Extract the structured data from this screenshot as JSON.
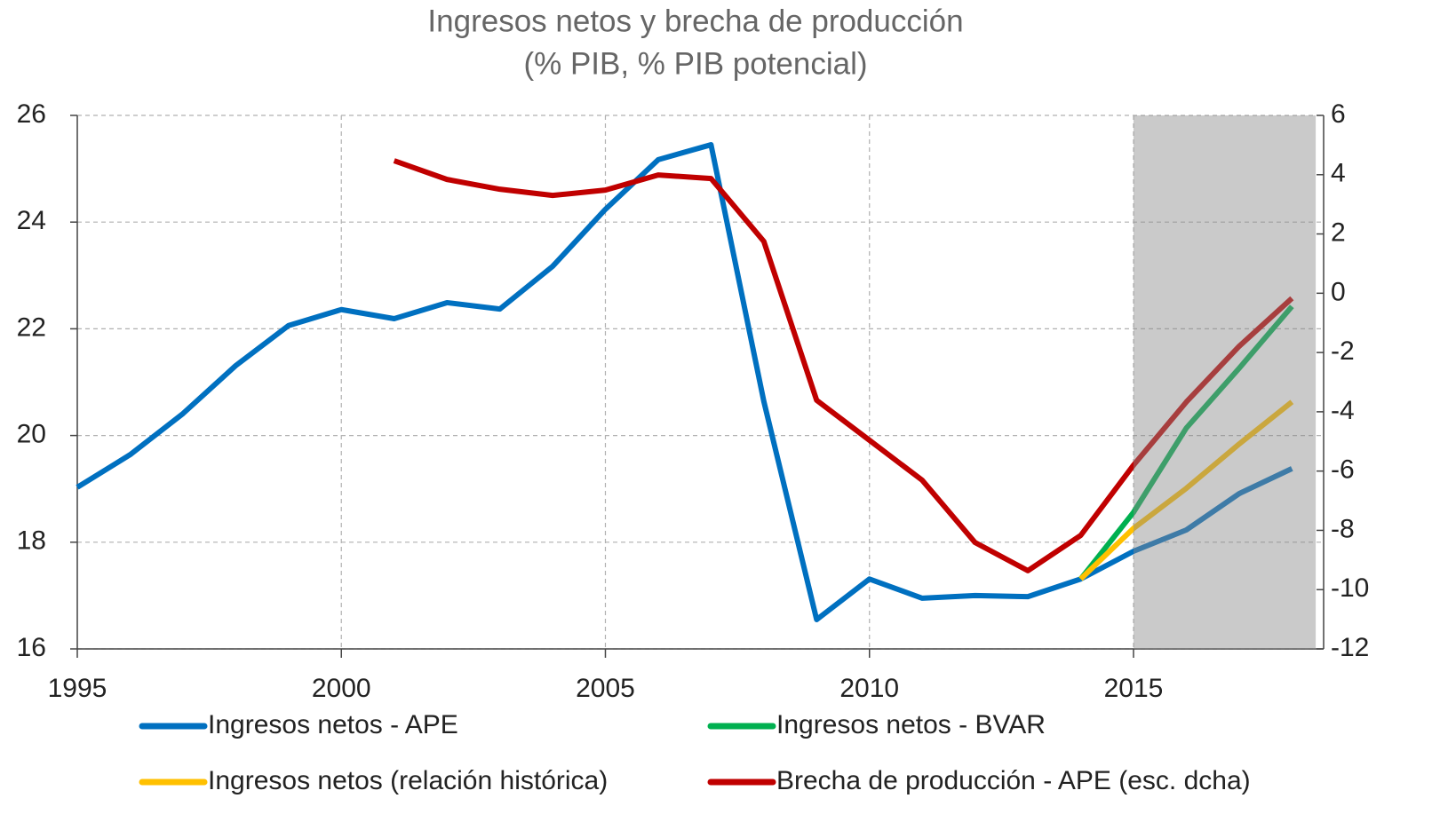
{
  "chart_data": {
    "type": "line",
    "title": "Ingresos netos y brecha de producción",
    "subtitle": "(% PIB, % PIB potencial)",
    "x": [
      1995,
      1996,
      1997,
      1998,
      1999,
      2000,
      2001,
      2002,
      2003,
      2004,
      2005,
      2006,
      2007,
      2008,
      2009,
      2010,
      2011,
      2012,
      2013,
      2014,
      2015,
      2016,
      2017,
      2018
    ],
    "series": [
      {
        "name": "Ingresos netos - APE",
        "color": "#0070c0",
        "values": [
          19.03,
          19.64,
          20.41,
          21.31,
          22.06,
          22.36,
          22.19,
          22.49,
          22.37,
          23.17,
          24.24,
          25.17,
          25.45,
          20.64,
          16.55,
          17.31,
          16.95,
          17.0,
          16.98,
          17.31,
          17.83,
          18.23,
          18.91,
          19.38
        ]
      },
      {
        "name": "Ingresos netos - BVAR",
        "color": "#00b050",
        "values": [
          null,
          null,
          null,
          null,
          null,
          null,
          null,
          null,
          null,
          null,
          null,
          null,
          null,
          null,
          null,
          null,
          null,
          null,
          null,
          17.31,
          18.56,
          20.14,
          21.26,
          22.42
        ]
      },
      {
        "name": "Ingresos netos (relación histórica)",
        "color": "#ffc000",
        "values": [
          null,
          null,
          null,
          null,
          null,
          null,
          null,
          null,
          null,
          null,
          null,
          null,
          null,
          null,
          null,
          null,
          null,
          null,
          null,
          17.31,
          18.26,
          19.01,
          19.84,
          20.63
        ]
      },
      {
        "name": "Brecha de producción - APE (esc. dcha)",
        "color": "#c00000",
        "axis": "y2",
        "values": [
          null,
          null,
          null,
          null,
          null,
          null,
          4.47,
          3.84,
          3.51,
          3.3,
          3.48,
          3.99,
          3.87,
          1.75,
          -3.61,
          -4.96,
          -6.31,
          -8.41,
          -9.36,
          -8.17,
          -5.8,
          -3.67,
          -1.79,
          -0.17
        ]
      }
    ],
    "xlim": [
      1995,
      2018.6
    ],
    "xticks": [
      1995,
      2000,
      2005,
      2010,
      2015
    ],
    "ylim": [
      16,
      26
    ],
    "yticks": [
      16,
      18,
      20,
      22,
      24,
      26
    ],
    "y2lim": [
      -12,
      6
    ],
    "y2ticks": [
      -12,
      -10,
      -8,
      -6,
      -4,
      -2,
      0,
      2,
      4,
      6
    ],
    "shaded_range": [
      2015,
      2018.45
    ],
    "grid": true
  }
}
